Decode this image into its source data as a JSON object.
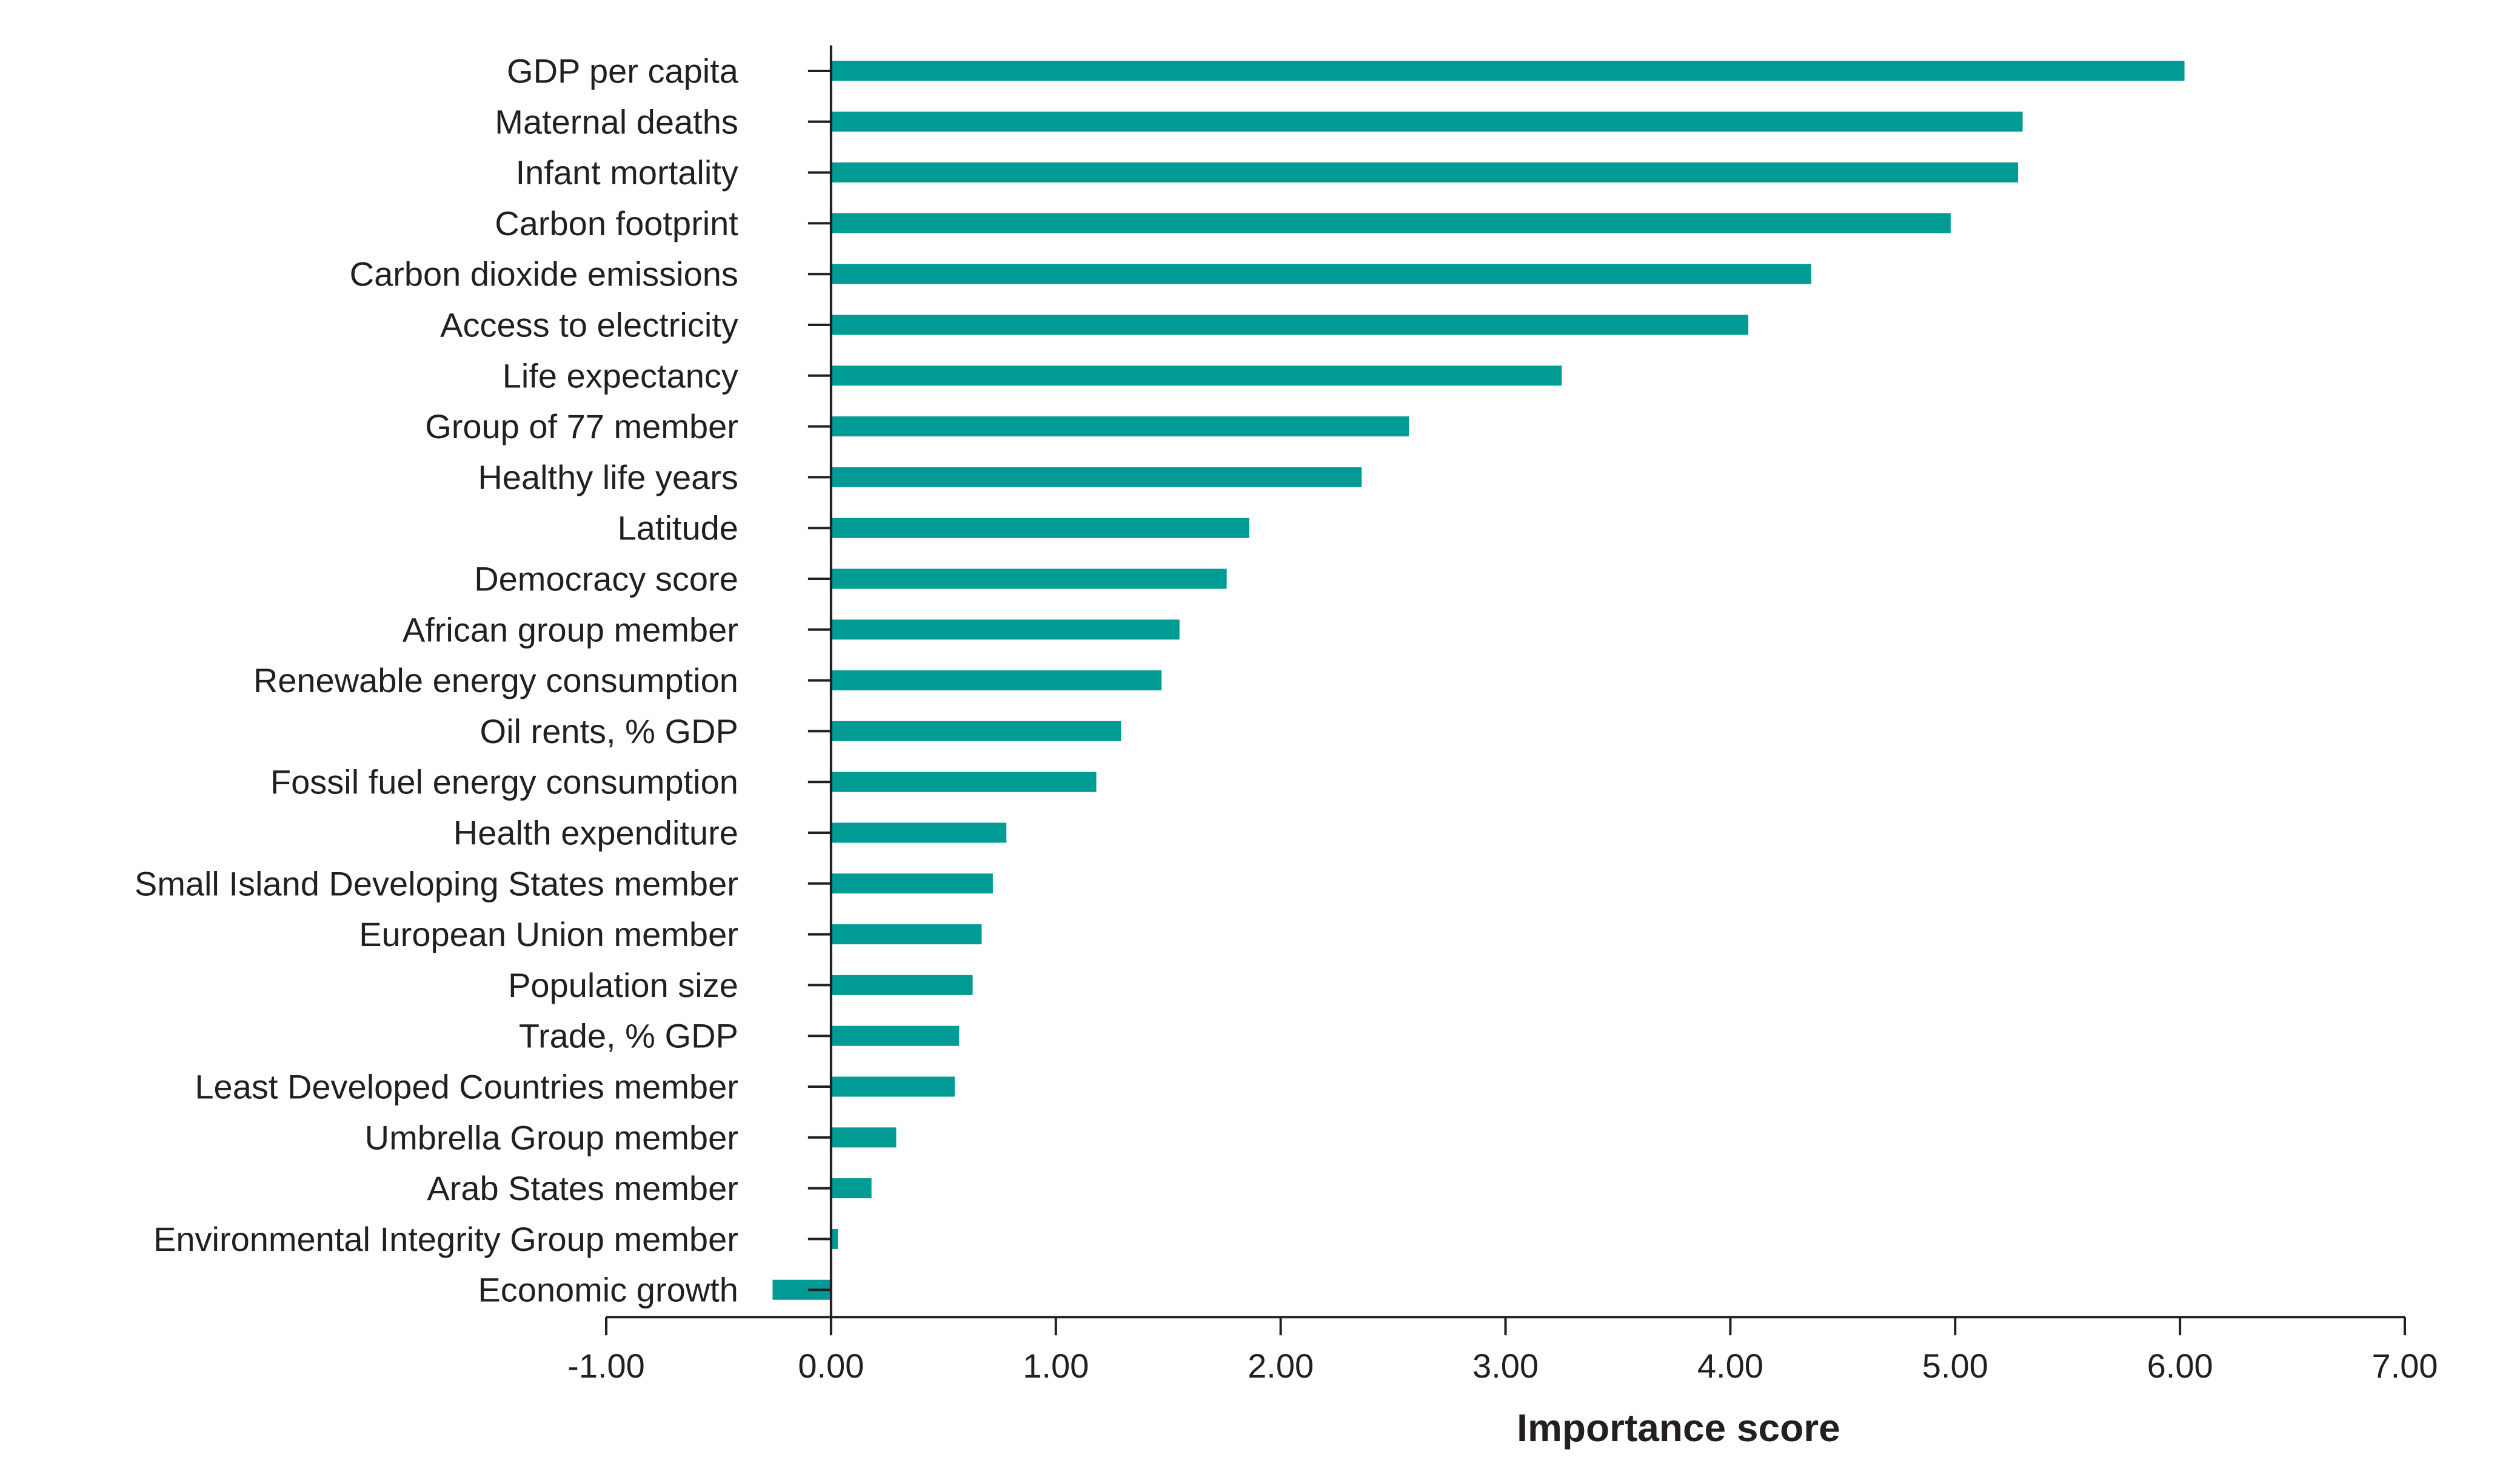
{
  "chart_data": {
    "type": "bar",
    "orientation": "horizontal",
    "title": "",
    "xlabel": "Importance score",
    "ylabel": "",
    "xlim": [
      -1.0,
      7.0
    ],
    "x_ticks": [
      -1,
      0,
      1,
      2,
      3,
      4,
      5,
      6,
      7
    ],
    "x_tick_labels": [
      "-1.00",
      "0.00",
      "1.00",
      "2.00",
      "3.00",
      "4.00",
      "5.00",
      "6.00",
      "7.00"
    ],
    "grid": false,
    "legend": "none",
    "colors": {
      "bar": "#009b94",
      "axis": "#231f20"
    },
    "categories": [
      "GDP per capita",
      "Maternal deaths",
      "Infant mortality",
      "Carbon footprint",
      "Carbon dioxide emissions",
      "Access to electricity",
      "Life expectancy",
      "Group of 77 member",
      "Healthy life years",
      "Latitude",
      "Democracy score",
      "African group member",
      "Renewable energy consumption",
      "Oil rents, % GDP",
      "Fossil fuel energy consumption",
      "Health expenditure",
      "Small Island Developing States member",
      "European Union member",
      "Population size",
      "Trade, % GDP",
      "Least Developed Countries member",
      "Umbrella Group member",
      "Arab States member",
      "Environmental Integrity Group member",
      "Economic growth"
    ],
    "values": [
      6.02,
      5.3,
      5.28,
      4.98,
      4.36,
      4.08,
      3.25,
      2.57,
      2.36,
      1.86,
      1.76,
      1.55,
      1.47,
      1.29,
      1.18,
      0.78,
      0.72,
      0.67,
      0.63,
      0.57,
      0.55,
      0.29,
      0.18,
      0.03,
      -0.26
    ]
  }
}
